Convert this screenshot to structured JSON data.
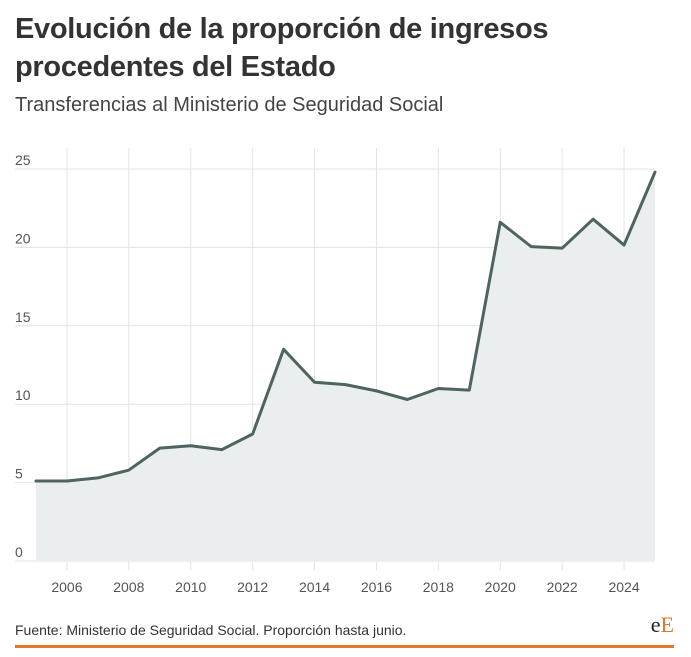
{
  "header": {
    "title": "Evolución de la proporción de ingresos procedentes del Estado",
    "subtitle": "Transferencias al Ministerio de Seguridad Social"
  },
  "footer": {
    "source": "Fuente: Ministerio de Seguridad Social. Proporción hasta junio.",
    "logo_prefix": "e",
    "logo_suffix": "E"
  },
  "colors": {
    "line": "#4d6461",
    "area": "#eaeeee",
    "grid": "#e3e3e3",
    "accent": "#e8742a"
  },
  "chart_data": {
    "type": "area",
    "x": [
      2005,
      2006,
      2007,
      2008,
      2009,
      2010,
      2011,
      2012,
      2013,
      2014,
      2015,
      2016,
      2017,
      2018,
      2019,
      2020,
      2021,
      2022,
      2023,
      2024,
      2025
    ],
    "series": [
      {
        "values": [
          5.1,
          5.1,
          5.3,
          5.8,
          7.2,
          7.35,
          7.1,
          8.1,
          13.5,
          11.4,
          11.25,
          10.85,
          10.3,
          11.0,
          10.9,
          21.6,
          20.05,
          19.95,
          21.8,
          20.15,
          24.8
        ]
      }
    ],
    "xlabel": "",
    "ylabel": "",
    "ylim": [
      0,
      25
    ],
    "xlim": [
      2005,
      2025
    ],
    "y_ticks": [
      0,
      5,
      10,
      15,
      20,
      25
    ],
    "x_ticks": [
      2006,
      2008,
      2010,
      2012,
      2014,
      2016,
      2018,
      2020,
      2022,
      2024
    ],
    "x_gridlines": [
      2006,
      2008,
      2010,
      2012,
      2014,
      2016,
      2018,
      2020,
      2022,
      2024
    ],
    "grid": true,
    "legend": "none"
  }
}
